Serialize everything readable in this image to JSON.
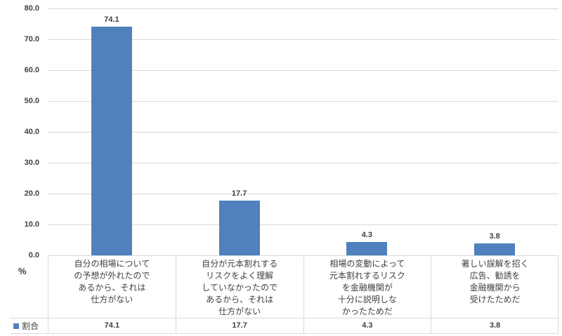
{
  "chart_data": {
    "type": "bar",
    "title": "",
    "unit_label": "%",
    "categories": [
      "自分の相場について\nの予想が外れたので\nあるから、それは\n仕方がない",
      "自分が元本割れする\nリスクをよく理解\nしていなかったので\nあるから、それは\n仕方がない",
      "相場の変動によって\n元本割れするリスク\nを金融機関が\n十分に説明しな\nかったためだ",
      "著しい誤解を招く\n広告、勧誘を\n金融機関から\n受けたためだ"
    ],
    "series": [
      {
        "name": "割合",
        "values": [
          74.1,
          17.7,
          4.3,
          3.8
        ]
      }
    ],
    "value_labels": [
      "74.1",
      "17.7",
      "4.3",
      "3.8"
    ],
    "y_axis": {
      "min": 0,
      "max": 80,
      "tick_interval": 10,
      "tick_labels": [
        "80.0",
        "70.0",
        "60.0",
        "50.0",
        "40.0",
        "30.0",
        "20.0",
        "10.0",
        "0.0"
      ]
    },
    "legend": {
      "label": "割合",
      "position": "bottom-left"
    },
    "grid": true,
    "data_table_shown": true,
    "colors": {
      "bar": "#4f81bd",
      "gridline": "#d9d9d9",
      "border": "#d9d9d9",
      "text": "#404040",
      "background": "#ffffff"
    }
  }
}
